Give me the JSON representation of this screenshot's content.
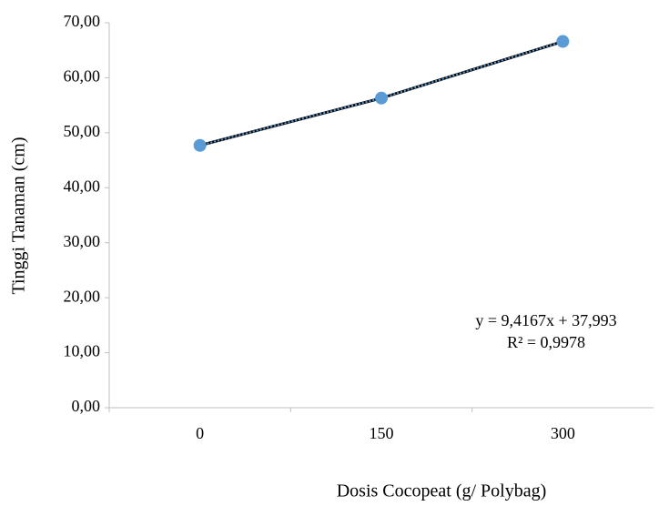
{
  "chart_data": {
    "type": "line",
    "x_label": "Dosis Cocopeat (g/ Polybag)",
    "y_label": "Tinggi Tanaman (cm)",
    "categories": [
      "0",
      "150",
      "300"
    ],
    "series": [
      {
        "name": "Tinggi Tanaman",
        "color": "#5b9bd5",
        "values": [
          47.7,
          56.3,
          66.6
        ]
      }
    ],
    "ylim": [
      0,
      70
    ],
    "yticks": [
      {
        "value": 0,
        "label": "0,00"
      },
      {
        "value": 10,
        "label": "10,00"
      },
      {
        "value": 20,
        "label": "20,00"
      },
      {
        "value": 30,
        "label": "30,00"
      },
      {
        "value": 40,
        "label": "40,00"
      },
      {
        "value": 50,
        "label": "50,00"
      },
      {
        "value": 60,
        "label": "60,00"
      },
      {
        "value": 70,
        "label": "70,00"
      }
    ],
    "annotations": [
      "y = 9,4167x + 37,993",
      "R² = 0,9978"
    ],
    "grid": false
  }
}
